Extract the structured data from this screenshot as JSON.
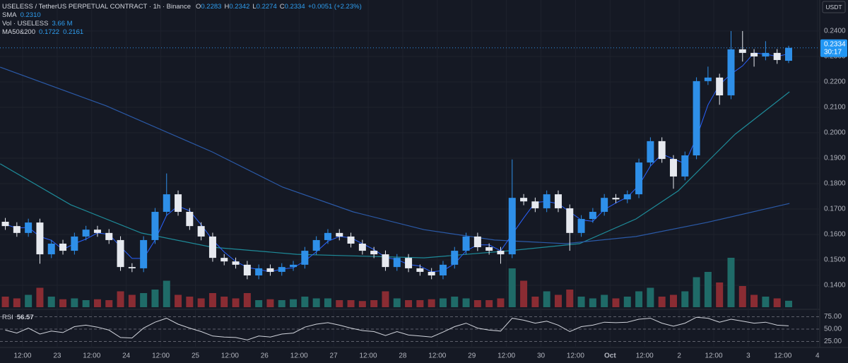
{
  "chart_data": {
    "type": "candlestick",
    "title": "USELESS / TetherUS PERPETUAL CONTRACT · 1h · Binance",
    "legend": {
      "ohlc": [
        [
          "O",
          "0.2283"
        ],
        [
          "H",
          "0.2342"
        ],
        [
          "L",
          "0.2274"
        ],
        [
          "C",
          "0.2334"
        ]
      ],
      "change": "+0.0051 (+2.23%)",
      "lines": [
        [
          "SMA",
          "0.2310"
        ],
        [
          "Vol · USELESS",
          "3.66 M"
        ],
        [
          "MA50&200",
          "0.1722",
          "0.2161"
        ]
      ]
    },
    "currency": "USDT",
    "countdown": "30:17",
    "up_color": "#2e8fe8",
    "down_color": "#e6e9ef",
    "x": [
      6,
      10,
      14,
      18,
      22,
      26,
      30,
      34,
      38,
      42,
      46,
      50,
      54,
      58,
      62,
      66,
      70,
      74,
      78,
      82,
      86,
      90,
      94,
      98,
      102,
      106,
      110,
      114,
      118,
      122,
      126,
      130,
      134,
      138,
      142,
      146,
      150,
      154,
      158,
      162,
      166,
      170,
      174,
      178,
      182,
      186,
      190,
      194,
      198,
      202,
      206,
      210,
      214,
      218,
      222,
      226,
      230,
      234,
      238,
      242,
      246,
      250,
      254,
      258,
      262,
      266,
      270,
      274,
      278
    ],
    "xlim": [
      4.15,
      288.8
    ],
    "xticks": [
      {
        "value": 12,
        "label": "12:00"
      },
      {
        "value": 24,
        "label": "23"
      },
      {
        "value": 36,
        "label": "12:00"
      },
      {
        "value": 48,
        "label": "24"
      },
      {
        "value": 60,
        "label": "12:00"
      },
      {
        "value": 72,
        "label": "25"
      },
      {
        "value": 84,
        "label": "12:00"
      },
      {
        "value": 96,
        "label": "26"
      },
      {
        "value": 108,
        "label": "12:00"
      },
      {
        "value": 120,
        "label": "27"
      },
      {
        "value": 132,
        "label": "12:00"
      },
      {
        "value": 144,
        "label": "28"
      },
      {
        "value": 156,
        "label": "12:00"
      },
      {
        "value": 168,
        "label": "29"
      },
      {
        "value": 180,
        "label": "12:00"
      },
      {
        "value": 192,
        "label": "30"
      },
      {
        "value": 204,
        "label": "12:00"
      },
      {
        "value": 216,
        "label": "Oct"
      },
      {
        "value": 228,
        "label": "12:00"
      },
      {
        "value": 240,
        "label": "2"
      },
      {
        "value": 252,
        "label": "12:00"
      },
      {
        "value": 264,
        "label": "3"
      },
      {
        "value": 276,
        "label": "12:00"
      },
      {
        "value": 288,
        "label": "4"
      }
    ],
    "open": [
      0.165,
      0.1633,
      0.1606,
      0.1647,
      0.1522,
      0.1564,
      0.1536,
      0.1592,
      0.1619,
      0.1606,
      0.1578,
      0.1472,
      0.1467,
      0.1578,
      0.1689,
      0.1758,
      0.1689,
      0.1633,
      0.1592,
      0.1508,
      0.1494,
      0.1481,
      0.1439,
      0.1467,
      0.1453,
      0.1472,
      0.1481,
      0.1536,
      0.1578,
      0.1606,
      0.1592,
      0.1564,
      0.1536,
      0.1522,
      0.1472,
      0.1508,
      0.1467,
      0.1453,
      0.1439,
      0.1481,
      0.1536,
      0.1592,
      0.155,
      0.1536,
      0.1522,
      0.1744,
      0.173,
      0.1703,
      0.1758,
      0.1703,
      0.1606,
      0.1661,
      0.1689,
      0.1744,
      0.1738,
      0.1758,
      0.1883,
      0.1967,
      0.1897,
      0.1828,
      0.1911,
      0.2203,
      0.2217,
      0.2147,
      0.2328,
      0.2314,
      0.23,
      0.2314,
      0.2283
    ],
    "high": [
      0.1665,
      0.1648,
      0.1662,
      0.1662,
      0.1579,
      0.1579,
      0.1607,
      0.1634,
      0.1634,
      0.1621,
      0.1593,
      0.1487,
      0.1593,
      0.1704,
      0.184,
      0.1773,
      0.1704,
      0.1648,
      0.1607,
      0.1523,
      0.1509,
      0.1496,
      0.1482,
      0.1482,
      0.1487,
      0.1496,
      0.1551,
      0.1593,
      0.1621,
      0.1621,
      0.1607,
      0.1579,
      0.1551,
      0.1537,
      0.1523,
      0.1523,
      0.1482,
      0.1468,
      0.1496,
      0.1551,
      0.1607,
      0.1607,
      0.1565,
      0.1551,
      0.1895,
      0.1759,
      0.1745,
      0.1773,
      0.1773,
      0.1718,
      0.1676,
      0.1704,
      0.1759,
      0.1759,
      0.1773,
      0.1898,
      0.1982,
      0.1982,
      0.1912,
      0.1926,
      0.2218,
      0.226,
      0.2232,
      0.24,
      0.24,
      0.2329,
      0.236,
      0.2329,
      0.2342
    ],
    "low": [
      0.1618,
      0.1591,
      0.1591,
      0.1485,
      0.1507,
      0.1521,
      0.1521,
      0.1577,
      0.1591,
      0.1563,
      0.1457,
      0.1452,
      0.1452,
      0.1563,
      0.1674,
      0.1674,
      0.1618,
      0.1577,
      0.1493,
      0.1479,
      0.1466,
      0.1424,
      0.1424,
      0.1438,
      0.1438,
      0.1457,
      0.1466,
      0.1521,
      0.1563,
      0.1577,
      0.1549,
      0.1521,
      0.1507,
      0.1457,
      0.1457,
      0.1452,
      0.1438,
      0.1424,
      0.1424,
      0.1466,
      0.1521,
      0.1535,
      0.1521,
      0.1485,
      0.1507,
      0.1715,
      0.1688,
      0.1688,
      0.1688,
      0.1536,
      0.1591,
      0.1646,
      0.1674,
      0.1723,
      0.1723,
      0.1743,
      0.1868,
      0.1882,
      0.178,
      0.1813,
      0.1896,
      0.2188,
      0.211,
      0.2132,
      0.228,
      0.226,
      0.2285,
      0.2271,
      0.2274
    ],
    "close": [
      0.1633,
      0.1606,
      0.1647,
      0.1522,
      0.1564,
      0.1536,
      0.1592,
      0.1619,
      0.1606,
      0.1578,
      0.1472,
      0.1467,
      0.1578,
      0.1689,
      0.1758,
      0.1689,
      0.1633,
      0.1592,
      0.1508,
      0.1494,
      0.1481,
      0.1439,
      0.1467,
      0.1453,
      0.1472,
      0.1481,
      0.1536,
      0.1578,
      0.1606,
      0.1592,
      0.1564,
      0.1536,
      0.1522,
      0.1472,
      0.1508,
      0.1467,
      0.1453,
      0.1439,
      0.1481,
      0.1536,
      0.1592,
      0.155,
      0.1536,
      0.1522,
      0.1744,
      0.173,
      0.1703,
      0.1758,
      0.1703,
      0.1606,
      0.1661,
      0.1689,
      0.1744,
      0.1738,
      0.1758,
      0.1883,
      0.1967,
      0.1897,
      0.1828,
      0.1911,
      0.2203,
      0.2217,
      0.2147,
      0.2328,
      0.2314,
      0.23,
      0.2314,
      0.2286,
      0.2334
    ],
    "ylim": [
      0.1314,
      0.2522
    ],
    "yticks": [
      {
        "value": 0.24,
        "label": "0.2400"
      },
      {
        "value": 0.23,
        "label": "0.2300"
      },
      {
        "value": 0.22,
        "label": "0.2200"
      },
      {
        "value": 0.21,
        "label": "0.2100"
      },
      {
        "value": 0.2,
        "label": "0.2000"
      },
      {
        "value": 0.19,
        "label": "0.1900"
      },
      {
        "value": 0.18,
        "label": "0.1800"
      },
      {
        "value": 0.17,
        "label": "0.1700"
      },
      {
        "value": 0.16,
        "label": "0.1600"
      },
      {
        "value": 0.15,
        "label": "0.1500"
      },
      {
        "value": 0.14,
        "label": "0.1400"
      }
    ],
    "grid": true,
    "sma": {
      "color": "#2962ff",
      "values": [
        0.164,
        0.1625,
        0.1628,
        0.1592,
        0.1577,
        0.1541,
        0.1564,
        0.1582,
        0.1606,
        0.1601,
        0.1552,
        0.1506,
        0.1506,
        0.1578,
        0.1675,
        0.1712,
        0.1693,
        0.1638,
        0.1578,
        0.1531,
        0.1494,
        0.1471,
        0.1462,
        0.1453,
        0.1464,
        0.1469,
        0.1496,
        0.1532,
        0.1573,
        0.1592,
        0.1587,
        0.1564,
        0.1541,
        0.151,
        0.1501,
        0.1482,
        0.1476,
        0.1453,
        0.1458,
        0.1485,
        0.1536,
        0.1559,
        0.1559,
        0.1536,
        0.1601,
        0.1665,
        0.1726,
        0.173,
        0.1721,
        0.1689,
        0.1657,
        0.1652,
        0.1698,
        0.1724,
        0.1747,
        0.1793,
        0.1869,
        0.1916,
        0.1897,
        0.1879,
        0.1981,
        0.211,
        0.2189,
        0.2231,
        0.2263,
        0.2314,
        0.2309,
        0.23,
        0.231
      ]
    },
    "ma_lines": [
      {
        "color": "#1e8b99",
        "x": [
          4.2,
          28.7,
          53.2,
          77.8,
          107.2,
          151.4,
          180.8,
          205.4,
          225.0,
          239.7,
          259.4,
          278.3
        ],
        "values": [
          0.1878,
          0.1717,
          0.1606,
          0.155,
          0.1522,
          0.1508,
          0.1536,
          0.1564,
          0.1661,
          0.1772,
          0.1994,
          0.2161
        ]
      },
      {
        "color": "#2b5aa8",
        "x": [
          4.2,
          41.0,
          77.8,
          102.3,
          126.8,
          151.4,
          175.9,
          200.5,
          225.0,
          249.5,
          278.3
        ],
        "values": [
          0.2258,
          0.2106,
          0.1925,
          0.1786,
          0.1689,
          0.1619,
          0.1578,
          0.1564,
          0.1592,
          0.1647,
          0.1722
        ]
      }
    ],
    "volume": {
      "up_color": "#1f6b68",
      "down_color": "#8a2c33",
      "ylim": [
        0,
        32
      ],
      "values": [
        6,
        5,
        7,
        11,
        6,
        4.5,
        5,
        4,
        4.5,
        4,
        9,
        7,
        8,
        10,
        15,
        7,
        6,
        5,
        8,
        6,
        5,
        8,
        4,
        4.5,
        4,
        4.5,
        6,
        5,
        5,
        4,
        4,
        3.5,
        4,
        9,
        5,
        4,
        4,
        4.5,
        5,
        6,
        5,
        4,
        4,
        5,
        22,
        15,
        6,
        9,
        7,
        10,
        6,
        5,
        7,
        5,
        6,
        9,
        11,
        6,
        7,
        9,
        17,
        20,
        14,
        28,
        12,
        7,
        6,
        5,
        3.66
      ]
    },
    "rsi": {
      "name": "RSI",
      "color": "#d1d4dc",
      "ylim": [
        12.9,
        87.1
      ],
      "yticks": [
        {
          "value": 75,
          "label": "75.00"
        },
        {
          "value": 50,
          "label": "50.00"
        },
        {
          "value": 25,
          "label": "25.00"
        }
      ],
      "values": [
        48,
        42,
        52,
        40,
        46,
        43,
        55,
        58,
        54,
        48,
        33,
        32,
        52,
        64,
        72,
        60,
        52,
        45,
        36,
        34,
        33,
        28,
        36,
        34,
        40,
        42,
        54,
        60,
        63,
        58,
        52,
        47,
        45,
        37,
        45,
        38,
        36,
        34,
        44,
        55,
        62,
        52,
        48,
        46,
        72,
        68,
        62,
        66,
        58,
        45,
        55,
        58,
        64,
        63,
        64,
        70,
        72,
        62,
        56,
        62,
        74,
        72,
        64,
        70,
        66,
        62,
        64,
        58,
        56.57
      ]
    }
  }
}
